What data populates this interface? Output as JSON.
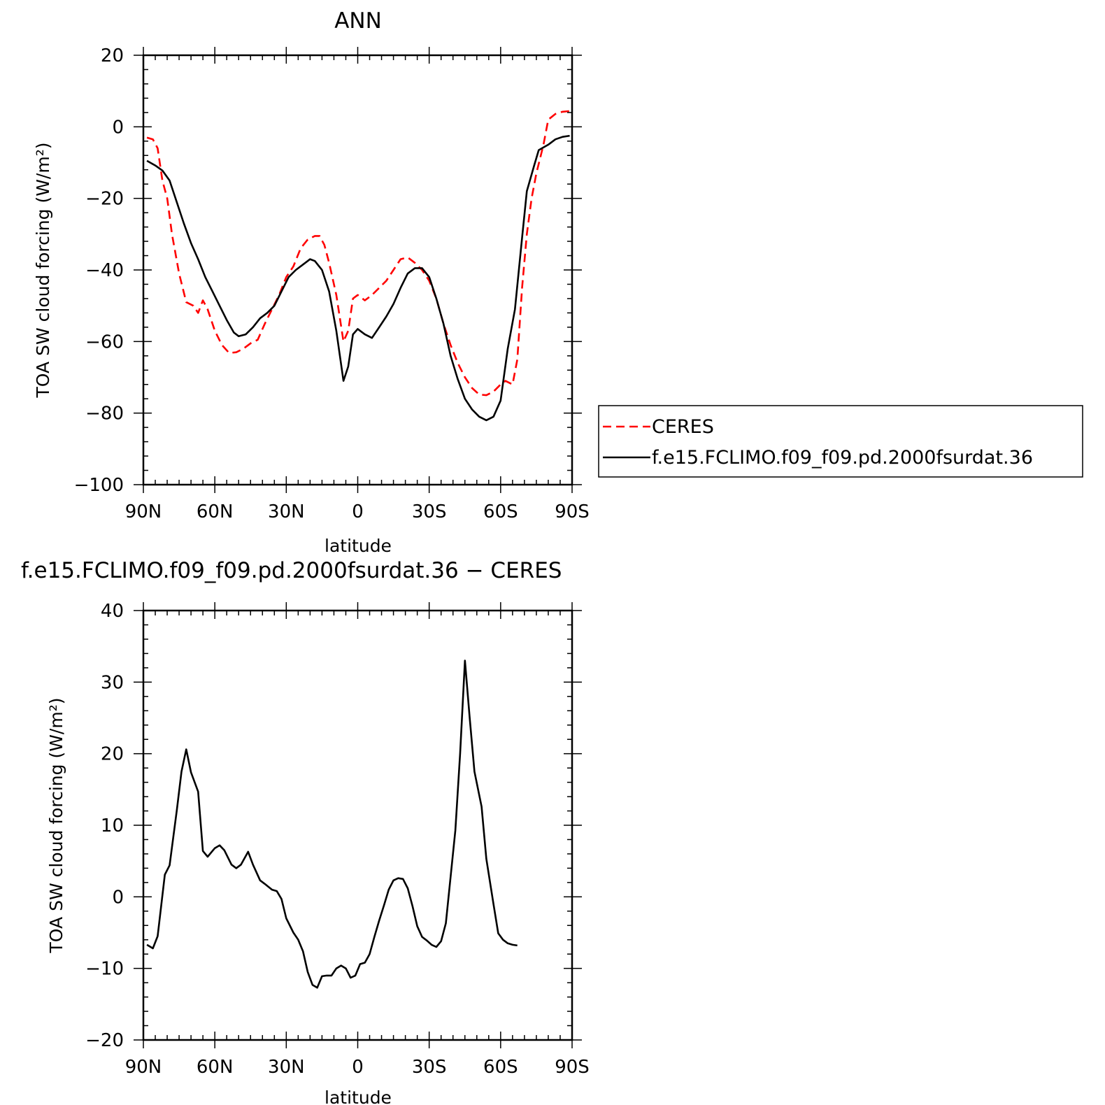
{
  "chart_data": [
    {
      "type": "line",
      "title": "ANN",
      "xlabel": "latitude",
      "ylabel": "TOA SW cloud forcing (W/m²)",
      "xlim": [
        -90,
        90
      ],
      "ylim": [
        -100,
        20
      ],
      "xticks": [
        {
          "v": -90,
          "label": "90N"
        },
        {
          "v": -60,
          "label": "60N"
        },
        {
          "v": -30,
          "label": "30N"
        },
        {
          "v": 0,
          "label": "0"
        },
        {
          "v": 30,
          "label": "30S"
        },
        {
          "v": 60,
          "label": "60S"
        },
        {
          "v": 90,
          "label": "90S"
        }
      ],
      "yticks": [
        {
          "v": 20,
          "label": "20"
        },
        {
          "v": 0,
          "label": "0"
        },
        {
          "v": -20,
          "label": "−20"
        },
        {
          "v": -40,
          "label": "−40"
        },
        {
          "v": -60,
          "label": "−60"
        },
        {
          "v": -80,
          "label": "−80"
        },
        {
          "v": -100,
          "label": "−100"
        }
      ],
      "legend_position": "right",
      "series": [
        {
          "name": "CERES",
          "color": "#ff0000",
          "dash": true,
          "points": [
            [
              -88.5,
              -3
            ],
            [
              -86,
              -3.5
            ],
            [
              -84,
              -6
            ],
            [
              -82,
              -15
            ],
            [
              -80,
              -20
            ],
            [
              -78,
              -30
            ],
            [
              -75,
              -41
            ],
            [
              -72,
              -49
            ],
            [
              -69,
              -50
            ],
            [
              -67,
              -52
            ],
            [
              -65,
              -48.5
            ],
            [
              -63,
              -51
            ],
            [
              -60,
              -57
            ],
            [
              -57,
              -61
            ],
            [
              -54,
              -63.2
            ],
            [
              -51,
              -63
            ],
            [
              -48,
              -62
            ],
            [
              -45,
              -60.5
            ],
            [
              -42,
              -59.5
            ],
            [
              -39,
              -55
            ],
            [
              -36,
              -51
            ],
            [
              -33,
              -47
            ],
            [
              -30,
              -42
            ],
            [
              -27,
              -39
            ],
            [
              -24,
              -34
            ],
            [
              -21,
              -31.5
            ],
            [
              -18,
              -30.5
            ],
            [
              -16,
              -30.5
            ],
            [
              -14,
              -33
            ],
            [
              -12,
              -38
            ],
            [
              -9,
              -47
            ],
            [
              -6,
              -60
            ],
            [
              -4,
              -57
            ],
            [
              -2,
              -48
            ],
            [
              0,
              -47
            ],
            [
              3,
              -48.5
            ],
            [
              6,
              -47
            ],
            [
              9,
              -45
            ],
            [
              12,
              -43
            ],
            [
              15,
              -40
            ],
            [
              18,
              -37
            ],
            [
              21,
              -36.5
            ],
            [
              24,
              -38
            ],
            [
              27,
              -40
            ],
            [
              30,
              -43
            ],
            [
              33,
              -48
            ],
            [
              36,
              -55
            ],
            [
              39,
              -61
            ],
            [
              42,
              -66
            ],
            [
              45,
              -70
            ],
            [
              48,
              -73
            ],
            [
              51,
              -74.8
            ],
            [
              54,
              -75
            ],
            [
              57,
              -74
            ],
            [
              60,
              -72
            ],
            [
              62,
              -71
            ],
            [
              65,
              -72
            ],
            [
              67,
              -65
            ],
            [
              69,
              -45
            ],
            [
              71,
              -30
            ],
            [
              73,
              -20
            ],
            [
              75,
              -13
            ],
            [
              78,
              -5
            ],
            [
              80,
              2
            ],
            [
              83,
              3.6
            ],
            [
              86,
              4.2
            ],
            [
              89,
              4.4
            ]
          ]
        },
        {
          "name": "f.e15.FCLIMO.f09_f09.pd.2000fsurdat.36",
          "color": "#000000",
          "dash": false,
          "points": [
            [
              -88.5,
              -9.5
            ],
            [
              -85,
              -10.8
            ],
            [
              -82,
              -12.2
            ],
            [
              -79,
              -15
            ],
            [
              -76,
              -21
            ],
            [
              -73,
              -27
            ],
            [
              -70,
              -32.5
            ],
            [
              -67,
              -37
            ],
            [
              -64,
              -42
            ],
            [
              -61,
              -46
            ],
            [
              -58,
              -50
            ],
            [
              -55,
              -54
            ],
            [
              -52,
              -57.5
            ],
            [
              -50,
              -58.5
            ],
            [
              -47,
              -58
            ],
            [
              -44,
              -56
            ],
            [
              -41,
              -53.5
            ],
            [
              -38,
              -52
            ],
            [
              -35,
              -50
            ],
            [
              -32,
              -46
            ],
            [
              -29,
              -42
            ],
            [
              -26,
              -40
            ],
            [
              -23,
              -38.5
            ],
            [
              -20,
              -37
            ],
            [
              -18,
              -37.5
            ],
            [
              -15,
              -40
            ],
            [
              -12,
              -46
            ],
            [
              -9,
              -57
            ],
            [
              -6,
              -71
            ],
            [
              -4,
              -67
            ],
            [
              -2,
              -58
            ],
            [
              0,
              -56.5
            ],
            [
              3,
              -58
            ],
            [
              6,
              -59
            ],
            [
              9,
              -56
            ],
            [
              12,
              -53
            ],
            [
              15,
              -49.5
            ],
            [
              18,
              -45
            ],
            [
              21,
              -41
            ],
            [
              24,
              -39.5
            ],
            [
              27,
              -39.5
            ],
            [
              30,
              -42
            ],
            [
              33,
              -48
            ],
            [
              36,
              -55
            ],
            [
              39,
              -64
            ],
            [
              42,
              -70.5
            ],
            [
              45,
              -76
            ],
            [
              48,
              -79
            ],
            [
              51,
              -81
            ],
            [
              54,
              -82
            ],
            [
              57,
              -81
            ],
            [
              60,
              -76.5
            ],
            [
              63,
              -62
            ],
            [
              66,
              -51
            ],
            [
              69,
              -31
            ],
            [
              71,
              -18
            ],
            [
              74,
              -11
            ],
            [
              76,
              -6.5
            ],
            [
              80,
              -5
            ],
            [
              83,
              -3.5
            ],
            [
              86,
              -2.8
            ],
            [
              89,
              -2.5
            ]
          ]
        }
      ]
    },
    {
      "type": "line",
      "title": "f.e15.FCLIMO.f09_f09.pd.2000fsurdat.36 − CERES",
      "xlabel": "latitude",
      "ylabel": "TOA SW cloud forcing (W/m²)",
      "xlim": [
        -90,
        90
      ],
      "ylim": [
        -20,
        40
      ],
      "xticks": [
        {
          "v": -90,
          "label": "90N"
        },
        {
          "v": -60,
          "label": "60N"
        },
        {
          "v": -30,
          "label": "30N"
        },
        {
          "v": 0,
          "label": "0"
        },
        {
          "v": 30,
          "label": "30S"
        },
        {
          "v": 60,
          "label": "60S"
        },
        {
          "v": 90,
          "label": "90S"
        }
      ],
      "yticks": [
        {
          "v": 40,
          "label": "40"
        },
        {
          "v": 30,
          "label": "30"
        },
        {
          "v": 20,
          "label": "20"
        },
        {
          "v": 10,
          "label": "10"
        },
        {
          "v": 0,
          "label": "0"
        },
        {
          "v": -10,
          "label": "−10"
        },
        {
          "v": -20,
          "label": "−20"
        }
      ],
      "series": [
        {
          "color": "#000000",
          "dash": false,
          "points": [
            [
              -88.5,
              -6.7
            ],
            [
              -86,
              -7.2
            ],
            [
              -84,
              -5.5
            ],
            [
              -81,
              3.1
            ],
            [
              -79,
              4.4
            ],
            [
              -76,
              12
            ],
            [
              -74,
              17.5
            ],
            [
              -72,
              20.6
            ],
            [
              -70,
              17.4
            ],
            [
              -67,
              14.7
            ],
            [
              -65,
              6.4
            ],
            [
              -63,
              5.6
            ],
            [
              -60,
              6.8
            ],
            [
              -58,
              7.2
            ],
            [
              -56,
              6.5
            ],
            [
              -53,
              4.5
            ],
            [
              -51,
              4
            ],
            [
              -49,
              4.5
            ],
            [
              -46,
              6.3
            ],
            [
              -44,
              4.5
            ],
            [
              -41,
              2.3
            ],
            [
              -39,
              1.8
            ],
            [
              -36,
              1
            ],
            [
              -34,
              0.8
            ],
            [
              -32,
              -0.3
            ],
            [
              -30,
              -3
            ],
            [
              -27,
              -5
            ],
            [
              -25,
              -6
            ],
            [
              -23,
              -7.6
            ],
            [
              -21,
              -10.5
            ],
            [
              -19,
              -12.3
            ],
            [
              -17,
              -12.7
            ],
            [
              -15,
              -11.1
            ],
            [
              -13,
              -11
            ],
            [
              -11,
              -11
            ],
            [
              -9,
              -10
            ],
            [
              -7,
              -9.6
            ],
            [
              -5,
              -10
            ],
            [
              -3,
              -11.3
            ],
            [
              -1,
              -11
            ],
            [
              1,
              -9.4
            ],
            [
              3,
              -9.2
            ],
            [
              5,
              -8
            ],
            [
              7,
              -5.6
            ],
            [
              9,
              -3.3
            ],
            [
              11,
              -1.2
            ],
            [
              13,
              1
            ],
            [
              15,
              2.3
            ],
            [
              17,
              2.6
            ],
            [
              19,
              2.5
            ],
            [
              21,
              1.2
            ],
            [
              23,
              -1.3
            ],
            [
              25,
              -4.1
            ],
            [
              27,
              -5.6
            ],
            [
              29,
              -6.1
            ],
            [
              31,
              -6.7
            ],
            [
              33,
              -7
            ],
            [
              35,
              -6.2
            ],
            [
              37,
              -3.7
            ],
            [
              39,
              2.8
            ],
            [
              41,
              9.3
            ],
            [
              43,
              20
            ],
            [
              45,
              33
            ],
            [
              47,
              25
            ],
            [
              49,
              17.5
            ],
            [
              52,
              12.6
            ],
            [
              54,
              5.3
            ],
            [
              57,
              -1
            ],
            [
              59,
              -5.1
            ],
            [
              61,
              -6
            ],
            [
              63,
              -6.5
            ],
            [
              65,
              -6.7
            ],
            [
              67,
              -6.8
            ]
          ]
        }
      ]
    }
  ]
}
